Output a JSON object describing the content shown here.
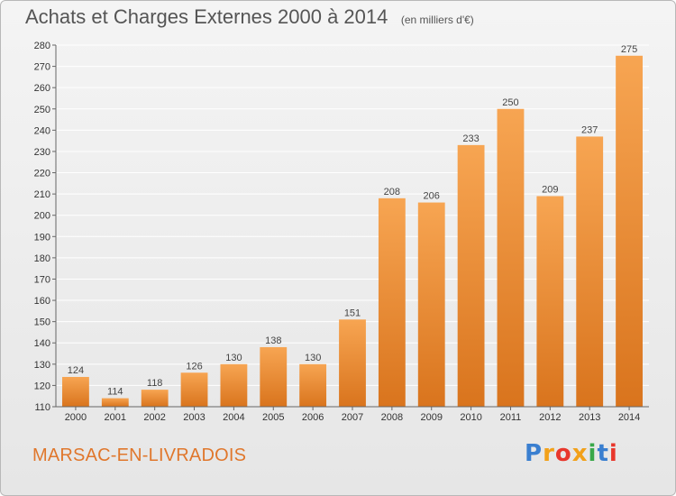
{
  "header": {
    "title": "Achats et Charges Externes 2000 à 2014",
    "subtitle": "(en milliers d'€)"
  },
  "footer": {
    "commune": "MARSAC-EN-LIVRADOIS",
    "logo_letters": [
      "P",
      "r",
      "o",
      "x",
      "i",
      "t",
      "i"
    ],
    "logo_colors": [
      "#3a7fd0",
      "#f2a11a",
      "#e8372c",
      "#f2a11a",
      "#3aa84a",
      "#3a7fd0",
      "#e8372c"
    ]
  },
  "colors": {
    "bar_top": "#f7a552",
    "bar_bottom": "#d9741d",
    "grid": "#ffffff",
    "axis": "#666666"
  },
  "chart_data": {
    "type": "bar",
    "title": "Achats et Charges Externes 2000 à 2014",
    "subtitle": "(en milliers d'€)",
    "categories": [
      "2000",
      "2001",
      "2002",
      "2003",
      "2004",
      "2005",
      "2006",
      "2007",
      "2008",
      "2009",
      "2010",
      "2011",
      "2012",
      "2013",
      "2014"
    ],
    "values": [
      124,
      114,
      118,
      126,
      130,
      138,
      130,
      151,
      208,
      206,
      233,
      250,
      209,
      237,
      275
    ],
    "ylim": [
      110,
      280
    ],
    "yticks": [
      110,
      120,
      130,
      140,
      150,
      160,
      170,
      180,
      190,
      200,
      210,
      220,
      230,
      240,
      250,
      260,
      270,
      280
    ],
    "grid": true,
    "data_labels": true
  }
}
